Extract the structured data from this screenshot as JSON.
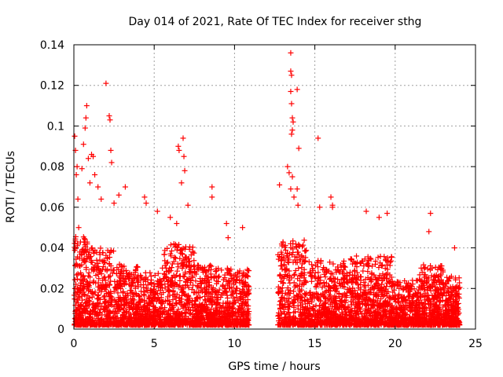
{
  "chart_data": {
    "type": "scatter",
    "title": "Day 014 of 2021, Rate Of TEC Index for receiver sthg",
    "xlabel": "GPS time / hours",
    "ylabel": "ROTI / TECUs",
    "xlim": [
      0,
      25
    ],
    "ylim": [
      0,
      0.14
    ],
    "xticks": [
      0,
      5,
      10,
      15,
      20,
      25
    ],
    "xtick_labels": [
      "0",
      "5",
      "10",
      "15",
      "20",
      "25"
    ],
    "yticks": [
      0,
      0.02,
      0.04,
      0.06,
      0.08,
      0.1,
      0.12,
      0.14
    ],
    "ytick_labels": [
      "0",
      "0.02",
      "0.04",
      "0.06",
      "0.08",
      "0.1",
      "0.12",
      "0.14"
    ],
    "grid": true,
    "marker": "+",
    "marker_color": "#ff0000",
    "data_gap_hours": [
      10.9,
      12.7
    ],
    "series": [
      {
        "name": "ROTI",
        "points": [
          [
            0.05,
            0.095
          ],
          [
            0.1,
            0.088
          ],
          [
            0.15,
            0.076
          ],
          [
            0.2,
            0.08
          ],
          [
            0.25,
            0.064
          ],
          [
            0.3,
            0.05
          ],
          [
            0.5,
            0.079
          ],
          [
            0.6,
            0.091
          ],
          [
            0.7,
            0.099
          ],
          [
            0.75,
            0.104
          ],
          [
            0.8,
            0.11
          ],
          [
            0.9,
            0.084
          ],
          [
            1.0,
            0.072
          ],
          [
            1.1,
            0.086
          ],
          [
            1.2,
            0.085
          ],
          [
            1.3,
            0.076
          ],
          [
            1.5,
            0.07
          ],
          [
            1.7,
            0.064
          ],
          [
            2.0,
            0.121
          ],
          [
            2.2,
            0.105
          ],
          [
            2.25,
            0.103
          ],
          [
            2.3,
            0.088
          ],
          [
            2.35,
            0.082
          ],
          [
            2.5,
            0.062
          ],
          [
            2.8,
            0.066
          ],
          [
            3.2,
            0.07
          ],
          [
            4.4,
            0.065
          ],
          [
            4.5,
            0.062
          ],
          [
            5.2,
            0.058
          ],
          [
            6.0,
            0.055
          ],
          [
            6.4,
            0.052
          ],
          [
            6.5,
            0.09
          ],
          [
            6.55,
            0.088
          ],
          [
            6.7,
            0.072
          ],
          [
            6.8,
            0.094
          ],
          [
            6.85,
            0.085
          ],
          [
            6.9,
            0.078
          ],
          [
            7.1,
            0.061
          ],
          [
            8.6,
            0.07
          ],
          [
            8.6,
            0.065
          ],
          [
            9.5,
            0.052
          ],
          [
            9.6,
            0.045
          ],
          [
            10.5,
            0.05
          ],
          [
            12.8,
            0.071
          ],
          [
            13.3,
            0.08
          ],
          [
            13.4,
            0.077
          ],
          [
            13.5,
            0.136
          ],
          [
            13.5,
            0.127
          ],
          [
            13.55,
            0.125
          ],
          [
            13.5,
            0.117
          ],
          [
            13.55,
            0.111
          ],
          [
            13.6,
            0.104
          ],
          [
            13.6,
            0.098
          ],
          [
            13.55,
            0.096
          ],
          [
            13.65,
            0.102
          ],
          [
            13.5,
            0.069
          ],
          [
            13.6,
            0.075
          ],
          [
            13.7,
            0.065
          ],
          [
            13.9,
            0.118
          ],
          [
            14.0,
            0.089
          ],
          [
            13.9,
            0.069
          ],
          [
            13.95,
            0.061
          ],
          [
            15.2,
            0.094
          ],
          [
            15.3,
            0.06
          ],
          [
            16.0,
            0.065
          ],
          [
            16.1,
            0.061
          ],
          [
            16.1,
            0.06
          ],
          [
            18.2,
            0.058
          ],
          [
            19.0,
            0.055
          ],
          [
            19.5,
            0.057
          ],
          [
            22.1,
            0.048
          ],
          [
            22.2,
            0.057
          ],
          [
            23.7,
            0.04
          ]
        ]
      }
    ]
  }
}
